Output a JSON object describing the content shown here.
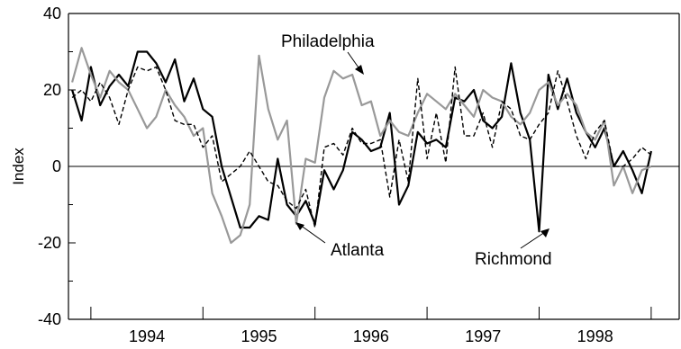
{
  "chart_data": {
    "type": "line",
    "title": "",
    "xlabel": "",
    "ylabel": "Index",
    "ylim": [
      -40,
      40
    ],
    "yticks": [
      -40,
      -20,
      0,
      20,
      40
    ],
    "ytick_labels": [
      "-40",
      "-20",
      "0",
      "20",
      "40"
    ],
    "xlim": [
      1993.3,
      1998.75
    ],
    "xtick_labels": [
      "1994",
      "1995",
      "1996",
      "1997",
      "1998"
    ],
    "year_label_positions": [
      1994.0,
      1995.0,
      1996.0,
      1997.0,
      1998.0
    ],
    "year_boundaries": [
      1993.5,
      1994.5,
      1995.5,
      1996.5,
      1997.5,
      1998.5
    ],
    "minor_ticks": [
      -30,
      -10,
      10,
      30
    ],
    "zero_line": true,
    "grid": false,
    "series": [
      {
        "name": "Richmond",
        "color": "#000000",
        "dash": "solid",
        "x": [
          1993.333,
          1993.417,
          1993.5,
          1993.583,
          1993.667,
          1993.75,
          1993.833,
          1993.917,
          1994.0,
          1994.083,
          1994.167,
          1994.25,
          1994.333,
          1994.417,
          1994.5,
          1994.583,
          1994.667,
          1994.75,
          1994.833,
          1994.917,
          1995.0,
          1995.083,
          1995.167,
          1995.25,
          1995.333,
          1995.417,
          1995.5,
          1995.583,
          1995.667,
          1995.75,
          1995.833,
          1995.917,
          1996.0,
          1996.083,
          1996.167,
          1996.25,
          1996.333,
          1996.417,
          1996.5,
          1996.583,
          1996.667,
          1996.75,
          1996.833,
          1996.917,
          1997.0,
          1997.083,
          1997.167,
          1997.25,
          1997.333,
          1997.417,
          1997.5,
          1997.583,
          1997.667,
          1997.75,
          1997.833,
          1997.917,
          1998.0,
          1998.083,
          1998.167,
          1998.25,
          1998.333,
          1998.417,
          1998.5
        ],
        "values": [
          20,
          12,
          26,
          16,
          21,
          24,
          21,
          30,
          30,
          27,
          22,
          28,
          17,
          23,
          15,
          13,
          0,
          -8,
          -16,
          -16,
          -13,
          -14,
          2,
          -10,
          -13,
          -9,
          -15,
          -1,
          -6,
          -1,
          9,
          7,
          4,
          5,
          14,
          -10,
          -5,
          9,
          6,
          7,
          5,
          18,
          17,
          20,
          12,
          10,
          13,
          27,
          14,
          7,
          -17,
          24,
          15,
          23,
          14,
          9,
          5,
          10,
          0,
          4,
          -1,
          -7,
          4
        ]
      },
      {
        "name": "Philadelphia",
        "color": "#999999",
        "dash": "solid",
        "x": [
          1993.333,
          1993.417,
          1993.5,
          1993.583,
          1993.667,
          1993.75,
          1993.833,
          1993.917,
          1994.0,
          1994.083,
          1994.167,
          1994.25,
          1994.333,
          1994.417,
          1994.5,
          1994.583,
          1994.667,
          1994.75,
          1994.833,
          1994.917,
          1995.0,
          1995.083,
          1995.167,
          1995.25,
          1995.333,
          1995.417,
          1995.5,
          1995.583,
          1995.667,
          1995.75,
          1995.833,
          1995.917,
          1996.0,
          1996.083,
          1996.167,
          1996.25,
          1996.333,
          1996.417,
          1996.5,
          1996.583,
          1996.667,
          1996.75,
          1996.833,
          1996.917,
          1997.0,
          1997.083,
          1997.167,
          1997.25,
          1997.333,
          1997.417,
          1997.5,
          1997.583,
          1997.667,
          1997.75,
          1997.833,
          1997.917,
          1998.0,
          1998.083,
          1998.167,
          1998.25,
          1998.333,
          1998.417,
          1998.5
        ],
        "values": [
          22,
          31,
          24,
          18,
          25,
          22,
          20,
          15,
          10,
          13,
          20,
          16,
          13,
          8,
          10,
          -7,
          -13,
          -20,
          -18,
          -10,
          29,
          15,
          7,
          12,
          -15,
          2,
          1,
          18,
          25,
          23,
          24,
          16,
          17,
          8,
          12,
          9,
          8,
          14,
          19,
          17,
          15,
          19,
          16,
          13,
          20,
          18,
          17,
          13,
          11,
          14,
          20,
          22,
          16,
          19,
          16,
          9,
          7,
          12,
          -5,
          0,
          -7,
          -1,
          0
        ]
      },
      {
        "name": "Atlanta",
        "color": "#000000",
        "dash": "dashed",
        "x": [
          1993.333,
          1993.417,
          1993.5,
          1993.583,
          1993.667,
          1993.75,
          1993.833,
          1993.917,
          1994.0,
          1994.083,
          1994.167,
          1994.25,
          1994.333,
          1994.417,
          1994.5,
          1994.583,
          1994.667,
          1994.75,
          1994.833,
          1994.917,
          1995.0,
          1995.083,
          1995.167,
          1995.25,
          1995.333,
          1995.417,
          1995.5,
          1995.583,
          1995.667,
          1995.75,
          1995.833,
          1995.917,
          1996.0,
          1996.083,
          1996.167,
          1996.25,
          1996.333,
          1996.417,
          1996.5,
          1996.583,
          1996.667,
          1996.75,
          1996.833,
          1996.917,
          1997.0,
          1997.083,
          1997.167,
          1997.25,
          1997.333,
          1997.417,
          1997.5,
          1997.583,
          1997.667,
          1997.75,
          1997.833,
          1997.917,
          1998.0,
          1998.083,
          1998.167,
          1998.25,
          1998.333,
          1998.417,
          1998.5
        ],
        "values": [
          18,
          20,
          17,
          22,
          18,
          11,
          20,
          26,
          25,
          26,
          20,
          12,
          11,
          11,
          5,
          8,
          -4,
          -2,
          0,
          4,
          0,
          -4,
          -5,
          -9,
          -11,
          -6,
          -16,
          5,
          6,
          3,
          10,
          6,
          6,
          7,
          -8,
          7,
          -4,
          23,
          2,
          14,
          1,
          26,
          8,
          8,
          14,
          5,
          17,
          15,
          8,
          7,
          11,
          14,
          25,
          17,
          8,
          2,
          9,
          12,
          0,
          0,
          2,
          5,
          3
        ]
      }
    ],
    "annotations": [
      {
        "text": "Philadelphia",
        "series": "Philadelphia"
      },
      {
        "text": "Atlanta",
        "series": "Atlanta"
      },
      {
        "text": "Richmond",
        "series": "Richmond"
      }
    ]
  }
}
